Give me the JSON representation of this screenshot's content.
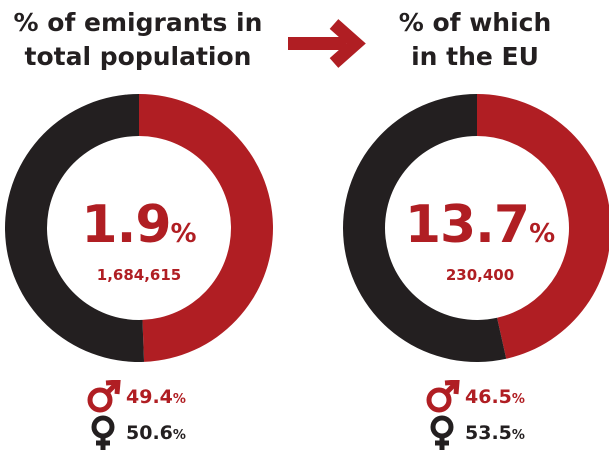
{
  "headings": {
    "left": [
      "% of emigrants in",
      "total population"
    ],
    "right": [
      "% of which",
      "in the EU"
    ]
  },
  "colors": {
    "red": "#b01e23",
    "black": "#231f20"
  },
  "icons": {
    "arrow": "arrow-right-icon",
    "male": "male-icon",
    "female": "female-icon"
  },
  "panels": {
    "left": {
      "percent": "1.9",
      "percent_sign": "%",
      "count": "1,684,615",
      "male": "49.4",
      "female": "50.6"
    },
    "right": {
      "percent": "13.7",
      "percent_sign": "%",
      "count": "230,400",
      "male": "46.5",
      "female": "53.5"
    }
  },
  "pct_sign": "%",
  "chart_data": [
    {
      "type": "pie",
      "title": "% of emigrants in total population",
      "categories": [
        "Male",
        "Female"
      ],
      "values": [
        49.4,
        50.6
      ],
      "center_label": "1.9%",
      "center_sublabel": "1,684,615"
    },
    {
      "type": "pie",
      "title": "% of which in the EU",
      "categories": [
        "Male",
        "Female"
      ],
      "values": [
        46.5,
        53.5
      ],
      "center_label": "13.7%",
      "center_sublabel": "230,400"
    }
  ]
}
